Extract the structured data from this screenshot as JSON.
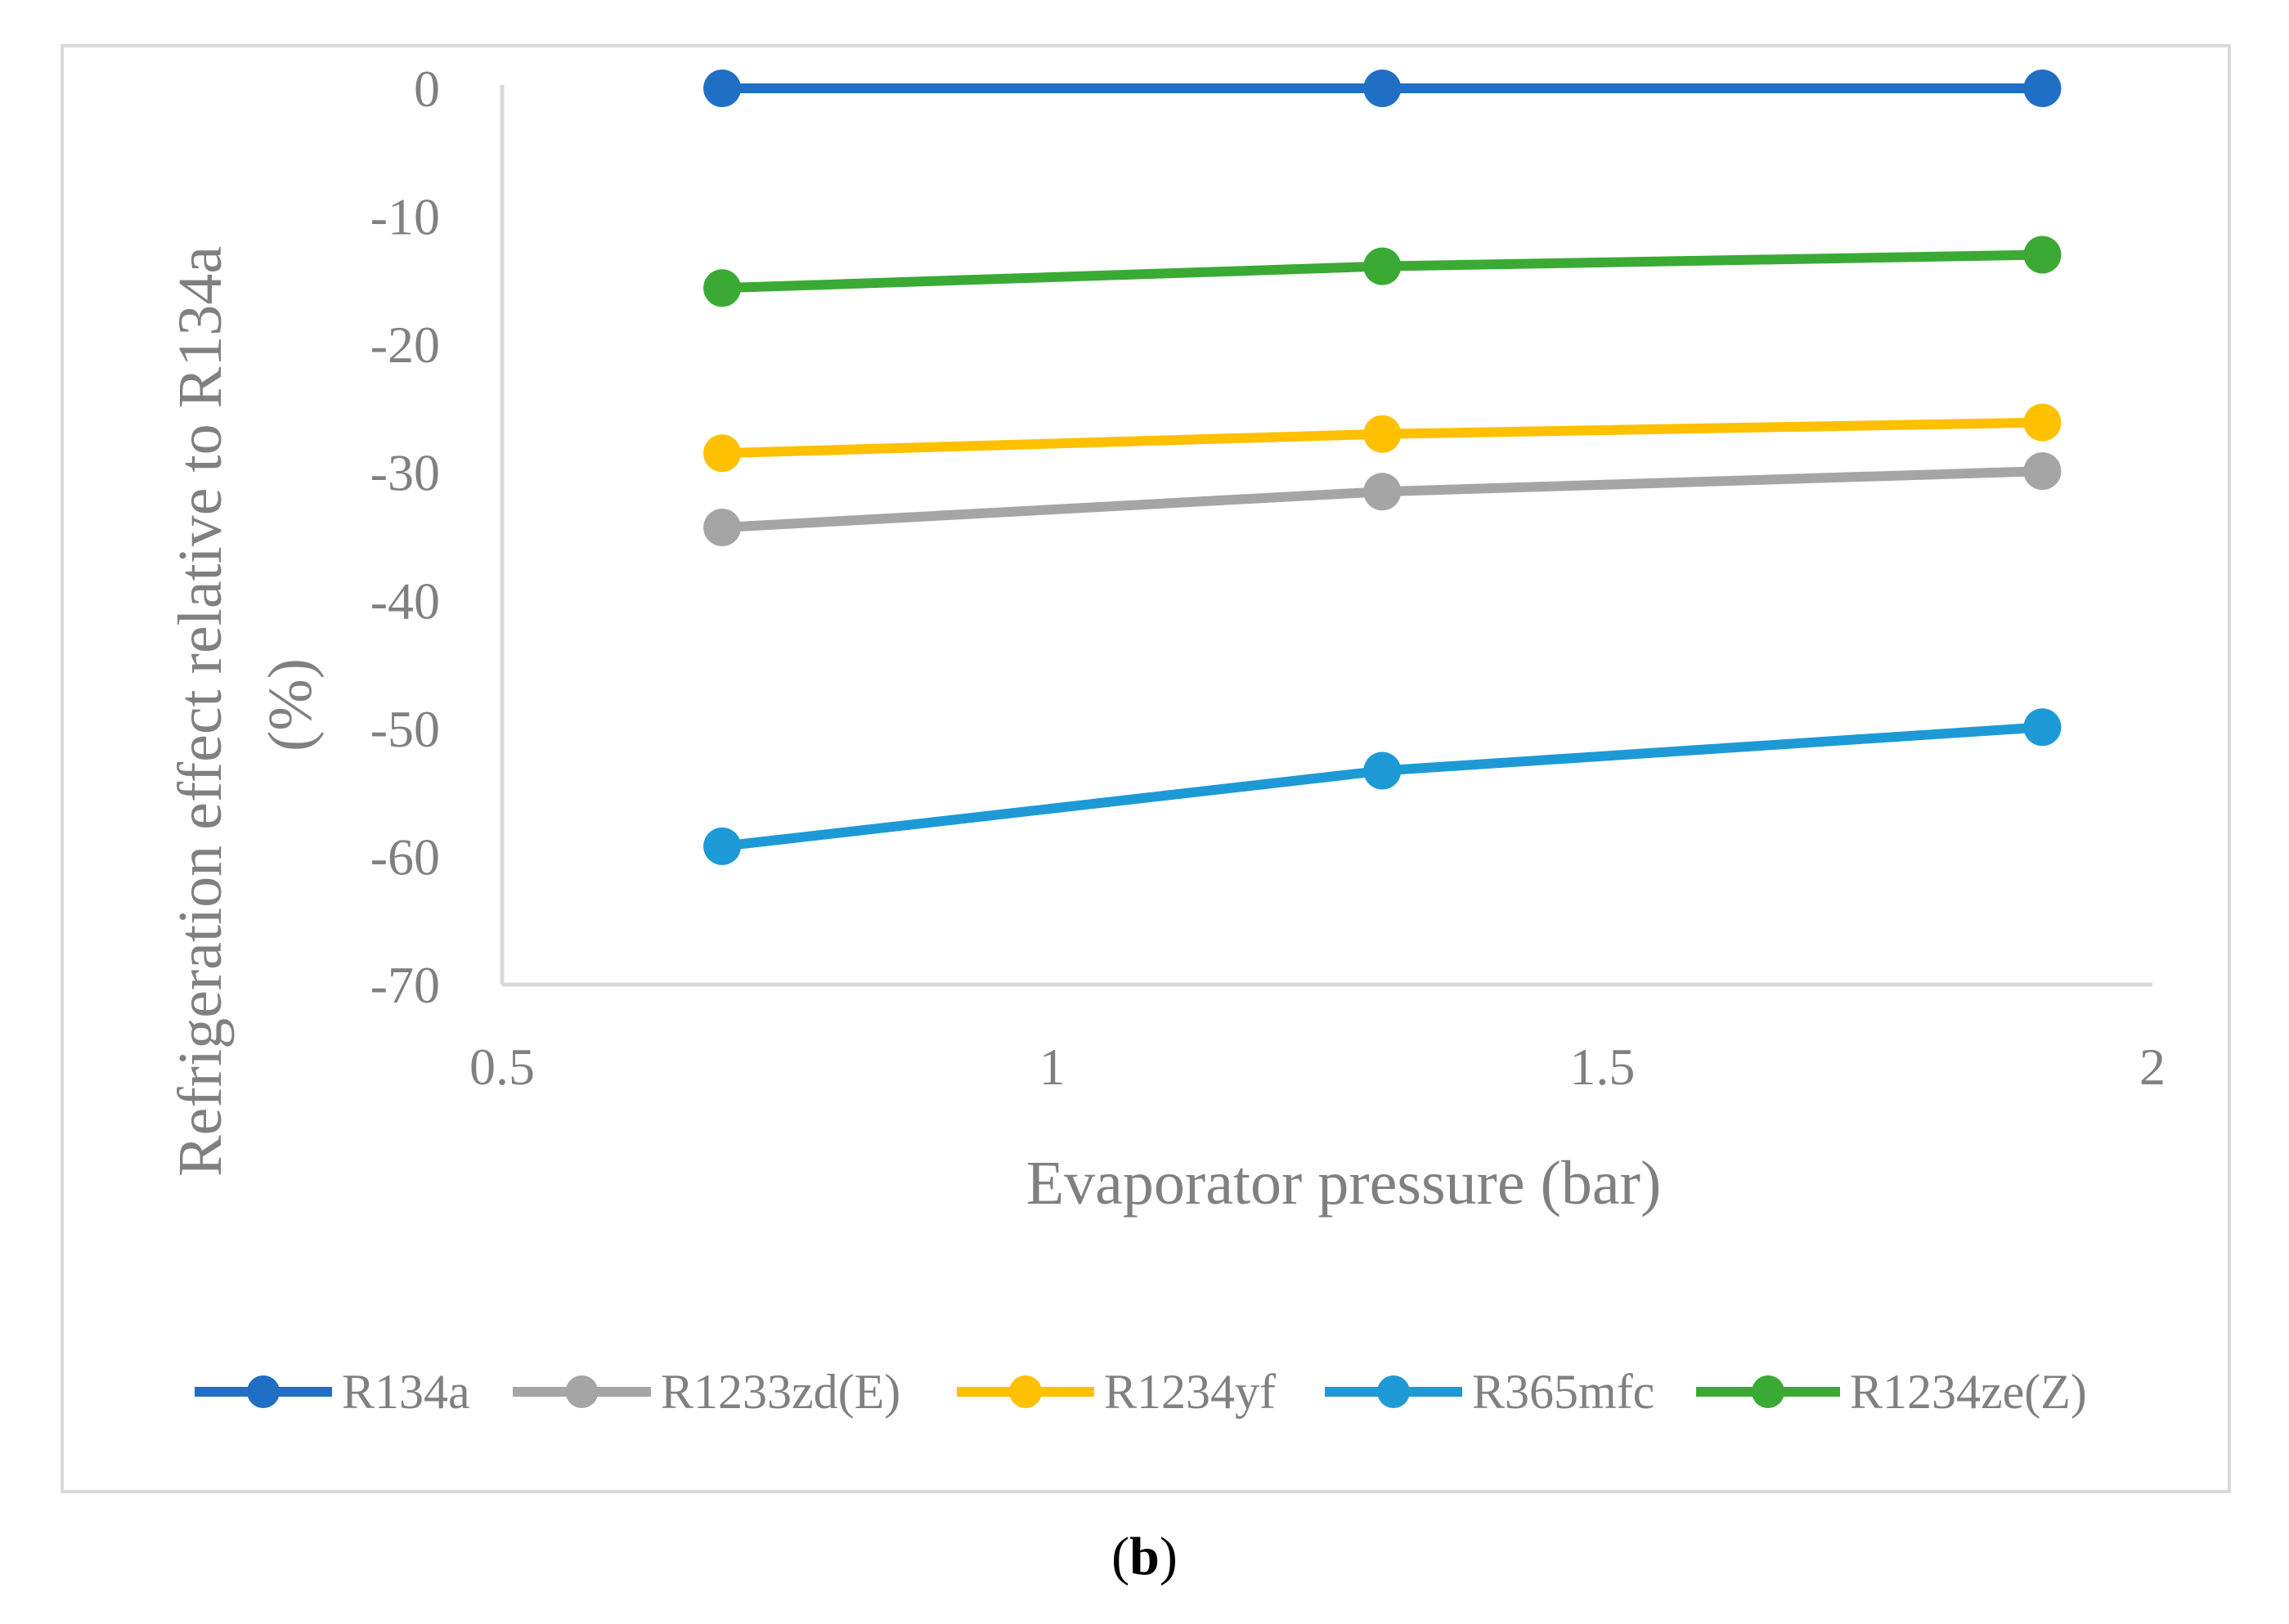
{
  "chart_data": {
    "type": "line",
    "title": "",
    "xlabel": "Evaporator pressure (bar)",
    "ylabel_line1": "Refrigeration effect relative to R134a",
    "ylabel_line2": "(%)",
    "xlim": [
      0.5,
      2
    ],
    "ylim": [
      -70,
      0
    ],
    "x_ticks": [
      0.5,
      1,
      1.5,
      2
    ],
    "x_tick_labels": [
      "0.5",
      "1",
      "1.5",
      "2"
    ],
    "y_ticks": [
      0,
      -10,
      -20,
      -30,
      -40,
      -50,
      -60,
      -70
    ],
    "y_tick_labels": [
      "0",
      "-10",
      "-20",
      "-30",
      "-40",
      "-50",
      "-60",
      "-70"
    ],
    "x": [
      0.7,
      1.3,
      1.9
    ],
    "series": [
      {
        "name": "R134a",
        "color": "#1f6fc5",
        "values": [
          0,
          0,
          0
        ]
      },
      {
        "name": "R1233zd(E)",
        "color": "#a5a5a5",
        "values": [
          -34.3,
          -31.5,
          -29.9
        ]
      },
      {
        "name": "R1234yf",
        "color": "#ffc000",
        "values": [
          -28.5,
          -27.0,
          -26.1
        ]
      },
      {
        "name": "R365mfc",
        "color": "#1d9ad6",
        "values": [
          -59.2,
          -53.3,
          -49.9
        ]
      },
      {
        "name": "R1234ze(Z)",
        "color": "#3aaa35",
        "values": [
          -15.6,
          -13.9,
          -13.0
        ]
      }
    ],
    "legend_position": "bottom",
    "grid": false
  },
  "colors": {
    "axis": "#d9d9d9",
    "text": "#808080"
  },
  "caption": {
    "open": "(",
    "letter": "b",
    "close": ")"
  }
}
